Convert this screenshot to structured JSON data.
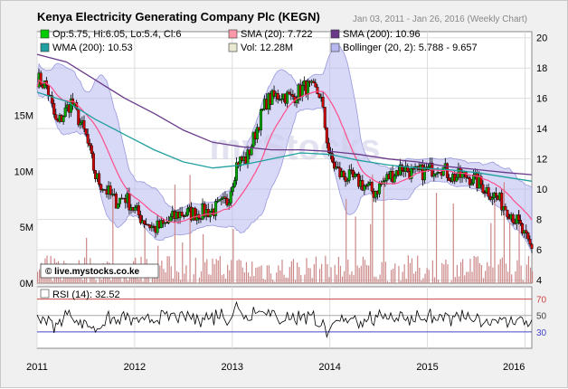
{
  "title": "Kenya Electricity Generating Company Plc (KEGN)",
  "date_range": "Jan 03, 2011 - Jan 26, 2016 (Weekly Chart)",
  "watermark": "live.mystocks.co.ke",
  "colors": {
    "candle_up": "#00aa00",
    "candle_down": "#cc0000",
    "sma20": "#ff4e8a",
    "sma200": "#6a3a8a",
    "wma200": "#20a0a0",
    "bollinger": "#b8b8f0",
    "volume": "#cc8888",
    "rsi": "#000000",
    "rsi_70": "#cc4444",
    "rsi_30": "#4444cc",
    "grid": "#dddddd"
  },
  "legend": [
    {
      "color": "#00cc00",
      "text": "Op:5.75, Hi:6.05, Lo:5.4, Cl:6"
    },
    {
      "color": "#ff99aa",
      "text": "SMA (20): 7.722"
    },
    {
      "color": "#6a3a8a",
      "text": "SMA (200): 10.96"
    },
    {
      "color": "#20a0a0",
      "text": "WMA (200): 10.53"
    },
    {
      "color": "#e8e8d0",
      "text": "Vol: 12.28M"
    },
    {
      "color": "#b8b8f0",
      "text": "Bollinger (20, 2): 5.788 - 9.657"
    }
  ],
  "rsi_label": "RSI (14): 32.52",
  "chart_data": {
    "type": "candlestick",
    "x_ticks": [
      {
        "label": "2011",
        "t": 2011.0
      },
      {
        "label": "2012",
        "t": 2012.0
      },
      {
        "label": "2013",
        "t": 2013.0
      },
      {
        "label": "2014",
        "t": 2014.0
      },
      {
        "label": "2015",
        "t": 2015.0
      },
      {
        "label": "2016",
        "t": 2016.0
      }
    ],
    "x_range": [
      2011.0,
      2016.07
    ],
    "price_axis": {
      "min": 3.8,
      "max": 20.4,
      "ticks": [
        4,
        6,
        8,
        10,
        12,
        14,
        16,
        18,
        20
      ]
    },
    "volume_axis": {
      "max": 22.5,
      "ticks": [
        {
          "label": "0M",
          "v": 0
        },
        {
          "label": "5M",
          "v": 5
        },
        {
          "label": "10M",
          "v": 10
        },
        {
          "label": "15M",
          "v": 15
        }
      ]
    },
    "rsi_axis": {
      "min": 10,
      "max": 85,
      "ticks": [
        {
          "label": "70",
          "v": 70
        },
        {
          "label": "50",
          "v": 50
        },
        {
          "label": "30",
          "v": 30
        }
      ]
    },
    "price_keypoints": [
      [
        2011.0,
        17.3
      ],
      [
        2011.1,
        16.8
      ],
      [
        2011.2,
        14.2
      ],
      [
        2011.35,
        15.8
      ],
      [
        2011.5,
        13.5
      ],
      [
        2011.6,
        10.8
      ],
      [
        2011.8,
        9.2
      ],
      [
        2011.9,
        9.5
      ],
      [
        2012.05,
        8.2
      ],
      [
        2012.2,
        7.4
      ],
      [
        2012.3,
        7.6
      ],
      [
        2012.45,
        8.4
      ],
      [
        2012.6,
        8.4
      ],
      [
        2012.8,
        8.6
      ],
      [
        2012.95,
        9.2
      ],
      [
        2013.05,
        11.8
      ],
      [
        2013.15,
        12.0
      ],
      [
        2013.25,
        14.0
      ],
      [
        2013.35,
        15.8
      ],
      [
        2013.5,
        16.3
      ],
      [
        2013.6,
        16.0
      ],
      [
        2013.75,
        16.8
      ],
      [
        2013.9,
        16.3
      ],
      [
        2014.0,
        12.0
      ],
      [
        2014.1,
        11.0
      ],
      [
        2014.3,
        10.5
      ],
      [
        2014.45,
        9.8
      ],
      [
        2014.6,
        10.8
      ],
      [
        2014.75,
        11.5
      ],
      [
        2014.85,
        11.0
      ],
      [
        2015.0,
        11.2
      ],
      [
        2015.12,
        11.6
      ],
      [
        2015.25,
        10.8
      ],
      [
        2015.4,
        10.9
      ],
      [
        2015.55,
        10.3
      ],
      [
        2015.7,
        9.5
      ],
      [
        2015.85,
        8.5
      ],
      [
        2015.95,
        7.5
      ],
      [
        2016.02,
        6.5
      ],
      [
        2016.07,
        6.0
      ]
    ],
    "sma200_keypoints": [
      [
        2011.0,
        18.9
      ],
      [
        2011.3,
        18.4
      ],
      [
        2011.6,
        17.2
      ],
      [
        2011.9,
        16.0
      ],
      [
        2012.2,
        15.0
      ],
      [
        2012.5,
        13.9
      ],
      [
        2012.8,
        13.1
      ],
      [
        2013.1,
        12.8
      ],
      [
        2013.4,
        12.6
      ],
      [
        2013.7,
        12.6
      ],
      [
        2014.0,
        12.5
      ],
      [
        2014.3,
        12.3
      ],
      [
        2014.6,
        12.0
      ],
      [
        2014.9,
        11.8
      ],
      [
        2015.2,
        11.5
      ],
      [
        2015.5,
        11.3
      ],
      [
        2015.8,
        11.1
      ],
      [
        2016.07,
        10.96
      ]
    ],
    "wma200_keypoints": [
      [
        2011.0,
        16.4
      ],
      [
        2011.3,
        15.8
      ],
      [
        2011.6,
        14.6
      ],
      [
        2011.9,
        13.6
      ],
      [
        2012.2,
        12.6
      ],
      [
        2012.5,
        11.8
      ],
      [
        2012.8,
        11.4
      ],
      [
        2013.1,
        11.6
      ],
      [
        2013.4,
        12.0
      ],
      [
        2013.7,
        12.4
      ],
      [
        2014.0,
        12.3
      ],
      [
        2014.3,
        11.9
      ],
      [
        2014.6,
        11.6
      ],
      [
        2014.9,
        11.4
      ],
      [
        2015.2,
        11.3
      ],
      [
        2015.5,
        11.1
      ],
      [
        2015.8,
        10.8
      ],
      [
        2016.07,
        10.53
      ]
    ]
  }
}
